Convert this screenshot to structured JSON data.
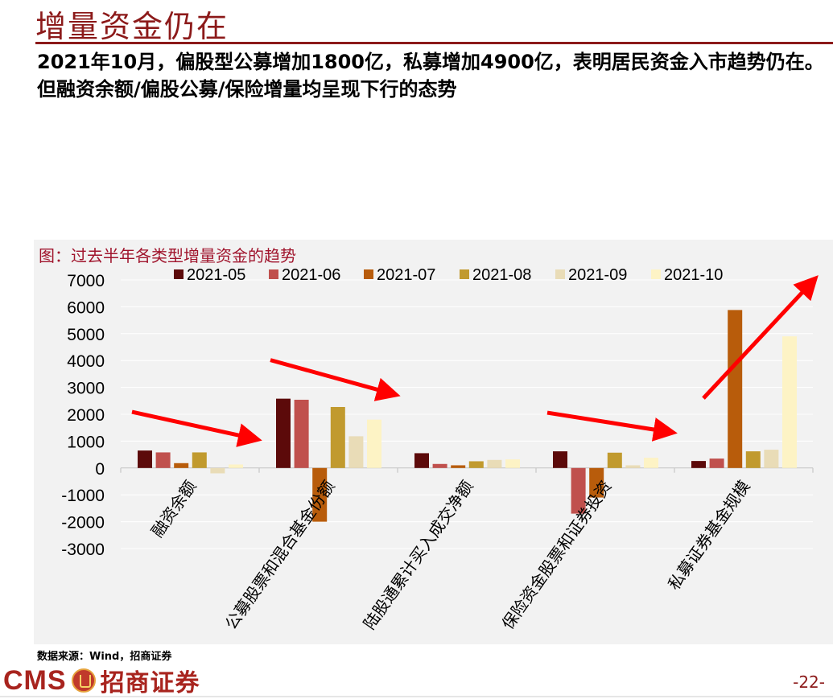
{
  "page": {
    "title": "增量资金仍在",
    "subtitle": "2021年10月，偏股型公募增加1800亿，私募增加4900亿，表明居民资金入市趋势仍在。但融资余额/偏股公募/保险增量均呈现下行的态势",
    "source": "数据来源：Wind，招商证券",
    "page_number": "-22-",
    "logo_text": "CMS",
    "logo_cn": "招商证券"
  },
  "chart_data": {
    "type": "bar",
    "title": "图：过去半年各类型增量资金的趋势",
    "categories": [
      "融资余额",
      "公募股票和混合基金份额",
      "陆股通累计买入成交净额",
      "保险资金股票和证券投资",
      "私募证券基金规模"
    ],
    "series": [
      {
        "name": "2021-05",
        "color": "#5c0a0a",
        "values": [
          650,
          2580,
          550,
          620,
          260
        ]
      },
      {
        "name": "2021-06",
        "color": "#c0504d",
        "values": [
          580,
          2540,
          150,
          -1700,
          350
        ]
      },
      {
        "name": "2021-07",
        "color": "#b85c0b",
        "values": [
          180,
          -2000,
          100,
          -1100,
          5880
        ]
      },
      {
        "name": "2021-08",
        "color": "#c19a2e",
        "values": [
          580,
          2270,
          250,
          570,
          620
        ]
      },
      {
        "name": "2021-09",
        "color": "#e9dcb7",
        "values": [
          -200,
          1180,
          300,
          100,
          680
        ]
      },
      {
        "name": "2021-10",
        "color": "#fdf3c5",
        "values": [
          130,
          1800,
          320,
          380,
          4900
        ]
      }
    ],
    "yticks": [
      "7000",
      "6000",
      "5000",
      "4000",
      "3000",
      "2000",
      "1000",
      "0",
      "-1000",
      "-2000",
      "-3000"
    ],
    "ylim": [
      -3000,
      7000
    ],
    "legend_position": "top",
    "annotations": [
      {
        "type": "arrow",
        "direction": "down",
        "group": 0
      },
      {
        "type": "arrow",
        "direction": "down",
        "group": 1
      },
      {
        "type": "arrow",
        "direction": "down",
        "group": 3
      },
      {
        "type": "arrow",
        "direction": "up",
        "group": 4
      }
    ],
    "arrow_color": "#ff0000"
  }
}
